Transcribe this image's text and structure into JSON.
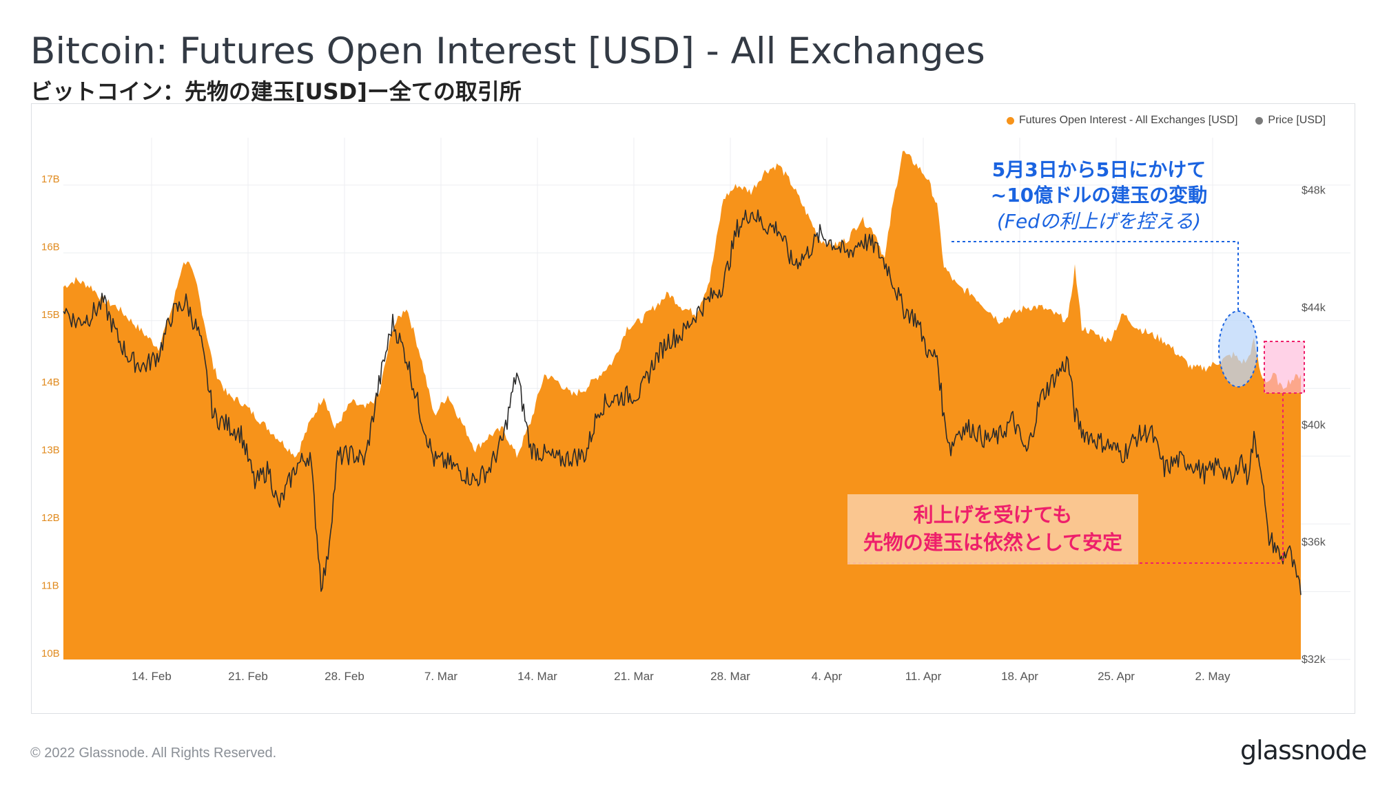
{
  "header": {
    "title": "Bitcoin: Futures Open Interest [USD] - All Exchanges",
    "subtitle": "ビットコイン：先物の建玉[USD]ー全ての取引所"
  },
  "legend": {
    "items": [
      {
        "label": "Futures Open Interest - All Exchanges [USD]",
        "color": "#f7931a"
      },
      {
        "label": "Price [USD]",
        "color": "#7a7a7a"
      }
    ]
  },
  "annotations": {
    "blue_note": {
      "line1": "5月3日から5日にかけて",
      "line2": "~10億ドルの建玉の変動",
      "line3": "(Fedの利上げを控える)",
      "color": "#1a63e0"
    },
    "pink_note": {
      "line1": "利上げを受けても",
      "line2": "先物の建玉は依然として安定",
      "color": "#ee1f6b"
    }
  },
  "footer": {
    "copyright": "© 2022 Glassnode. All Rights Reserved.",
    "brand": "glassnode"
  },
  "chart_data": {
    "type": "area",
    "x_tick_labels": [
      "14. Feb",
      "21. Feb",
      "28. Feb",
      "7. Mar",
      "14. Mar",
      "21. Mar",
      "28. Mar",
      "4. Apr",
      "11. Apr",
      "18. Apr",
      "25. Apr",
      "2. May"
    ],
    "x_tick_days": [
      14,
      21,
      28,
      35,
      42,
      49,
      56,
      63,
      70,
      77,
      84,
      91
    ],
    "x_range_days": [
      7.6,
      97.4
    ],
    "y_left": {
      "ticks": [
        "10B",
        "11B",
        "12B",
        "13B",
        "14B",
        "15B",
        "16B",
        "17B"
      ],
      "range": [
        10,
        17.7
      ],
      "unit": "B USD"
    },
    "y_right": {
      "ticks": [
        "$32k",
        "$36k",
        "$40k",
        "$44k",
        "$48k"
      ],
      "range": [
        32000,
        49800
      ],
      "unit": "USD"
    },
    "series": [
      {
        "name": "Futures Open Interest - All Exchanges [USD]",
        "axis": "left",
        "color": "#f7931a",
        "x_days": [
          7.6,
          8.5,
          9.6,
          10.5,
          11.5,
          12.5,
          13.5,
          14.5,
          15.5,
          16.2,
          16.6,
          17.3,
          18.5,
          19.5,
          20.5,
          21.5,
          22.5,
          23.5,
          24.5,
          25.5,
          26.5,
          27.3,
          28.5,
          29.5,
          30.5,
          31.5,
          32.5,
          33.5,
          34.5,
          35.5,
          36.5,
          37.5,
          38.5,
          39.5,
          40.5,
          41.5,
          42.5,
          43.5,
          44.5,
          45.5,
          46.5,
          47.5,
          48.5,
          49.5,
          50.5,
          51.5,
          52.5,
          53.5,
          54.5,
          55.5,
          56.5,
          57.5,
          58.5,
          59.5,
          60.5,
          61.5,
          62.5,
          63.5,
          64.5,
          65.5,
          66.5,
          67.2,
          67.7,
          68.5,
          69.5,
          70.3,
          71.0,
          71.5,
          72.5,
          73.5,
          74.5,
          75.5,
          76.5,
          77.5,
          78.5,
          79.5,
          80.5,
          81.0,
          81.5,
          82.5,
          83.5,
          84.5,
          85.5,
          86.5,
          87.5,
          88.5,
          89.5,
          90.5,
          91.5,
          92.5,
          93.0,
          93.5,
          94.0,
          94.5,
          95.0,
          95.5,
          96.0,
          96.5,
          97.4
        ],
        "values": [
          15.5,
          15.6,
          15.5,
          15.3,
          15.2,
          15.0,
          14.8,
          14.6,
          15.2,
          15.8,
          15.9,
          15.5,
          14.3,
          13.9,
          13.8,
          13.6,
          13.4,
          13.2,
          13.0,
          13.5,
          13.9,
          13.4,
          13.8,
          13.7,
          13.9,
          14.9,
          15.2,
          14.5,
          13.6,
          13.9,
          13.5,
          13.1,
          13.3,
          13.4,
          13.0,
          13.5,
          14.2,
          14.1,
          13.9,
          14.0,
          14.2,
          14.4,
          14.9,
          15.0,
          15.2,
          15.4,
          15.2,
          15.1,
          15.6,
          16.8,
          17.0,
          16.9,
          17.2,
          17.3,
          17.0,
          16.6,
          16.2,
          16.1,
          16.2,
          16.5,
          16.3,
          15.9,
          16.6,
          17.5,
          17.3,
          17.1,
          16.7,
          15.8,
          15.5,
          15.4,
          15.2,
          15.0,
          15.1,
          15.2,
          15.2,
          15.1,
          15.0,
          15.8,
          14.9,
          14.8,
          14.7,
          15.1,
          14.9,
          14.8,
          14.7,
          14.5,
          14.3,
          14.3,
          14.4,
          14.5,
          14.4,
          14.4,
          14.7,
          14.2,
          14.1,
          14.2,
          14.0,
          14.1,
          14.2
        ]
      },
      {
        "name": "Price [USD]",
        "axis": "right",
        "color": "#2b2b2b",
        "x_days": [
          7.6,
          8.5,
          9.5,
          10.5,
          11.5,
          12.5,
          13.5,
          14.5,
          15.5,
          16.5,
          17.5,
          18.5,
          19.5,
          20.5,
          21.5,
          22.5,
          23.2,
          23.5,
          24.5,
          25.5,
          26.3,
          26.7,
          27.5,
          28.5,
          29.5,
          30.5,
          31.5,
          32.5,
          33.5,
          34.5,
          35.5,
          36.5,
          37.5,
          38.5,
          39.5,
          40.5,
          41.5,
          42.5,
          43.5,
          44.5,
          45.5,
          46.5,
          47.5,
          48.5,
          49.5,
          50.5,
          51.5,
          52.5,
          53.5,
          54.5,
          55.5,
          56.5,
          57.5,
          58.5,
          59.5,
          60.5,
          61.5,
          62.5,
          63.5,
          64.5,
          65.5,
          66.5,
          67.5,
          68.5,
          69.5,
          70.5,
          71.0,
          71.5,
          72.0,
          72.5,
          73.5,
          74.5,
          75.5,
          76.5,
          77.5,
          78.5,
          79.5,
          80.5,
          81.0,
          81.5,
          82.5,
          83.5,
          84.5,
          85.5,
          86.5,
          87.5,
          88.5,
          89.5,
          90.5,
          91.5,
          92.5,
          93.0,
          93.5,
          94.0,
          94.5,
          95.0,
          95.5,
          96.0,
          96.5,
          97.4
        ],
        "values": [
          44000,
          43500,
          43700,
          44200,
          43000,
          42200,
          42000,
          42400,
          43800,
          44200,
          43000,
          40300,
          40000,
          39700,
          38000,
          38500,
          37200,
          37500,
          38600,
          39000,
          34600,
          35200,
          38900,
          39000,
          38800,
          41400,
          43500,
          42300,
          40400,
          38800,
          38700,
          38400,
          38100,
          38500,
          39500,
          41800,
          39200,
          39000,
          38800,
          38900,
          39000,
          40600,
          40900,
          41000,
          41100,
          42200,
          42900,
          43100,
          43800,
          44300,
          44800,
          46700,
          47300,
          46800,
          46700,
          45500,
          45800,
          46500,
          46200,
          45800,
          46300,
          46100,
          45300,
          44000,
          43600,
          42300,
          42400,
          40200,
          39200,
          39800,
          39900,
          39500,
          39600,
          40200,
          39000,
          40900,
          41600,
          42200,
          40400,
          39800,
          39500,
          39300,
          39000,
          39600,
          39800,
          38500,
          38800,
          38700,
          38300,
          38700,
          38000,
          39000,
          38200,
          39500,
          38700,
          36200,
          35900,
          35400,
          35800,
          34200
        ]
      }
    ],
    "grid": true,
    "legend_position": "top-right"
  }
}
